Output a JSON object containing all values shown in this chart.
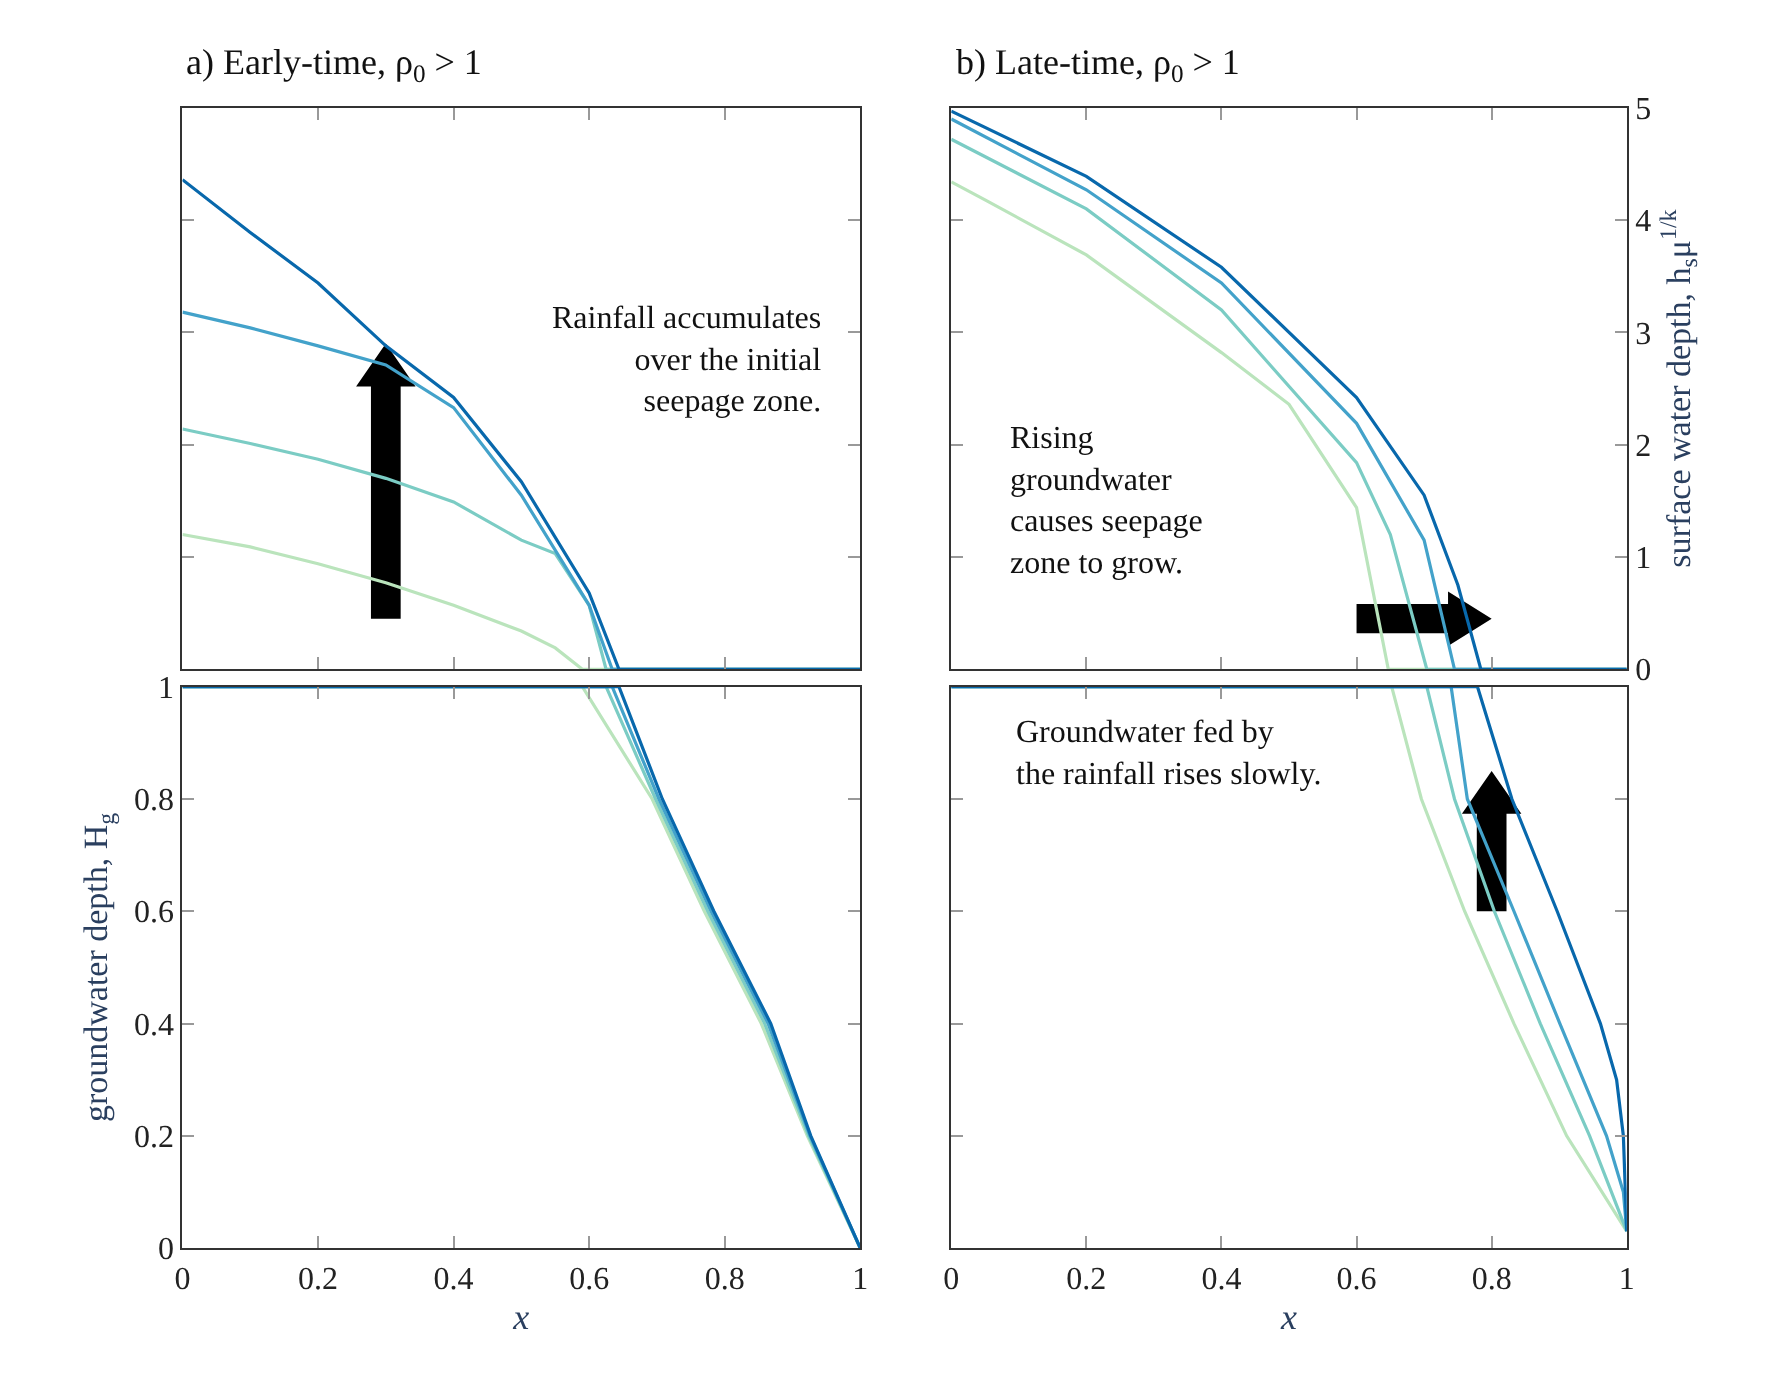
{
  "chart_data": [
    {
      "type": "line",
      "title": "a) Early-time, ρ$_{0}$ > 1",
      "xlim": [
        0,
        1
      ],
      "xticks": [
        {
          "value": 0,
          "label": null
        },
        {
          "value": 0.2,
          "label": null
        },
        {
          "value": 0.4,
          "label": null
        },
        {
          "value": 0.6,
          "label": null
        },
        {
          "value": 0.8,
          "label": null
        },
        {
          "value": 1,
          "label": null
        }
      ],
      "ylim": [
        0,
        5
      ],
      "yticks": [
        {
          "value": 0,
          "label": null
        },
        {
          "value": 1,
          "label": null
        },
        {
          "value": 2,
          "label": null
        },
        {
          "value": 3,
          "label": null
        },
        {
          "value": 4,
          "label": null
        },
        {
          "value": 5,
          "label": null
        }
      ],
      "tick_labels": false,
      "grid": false,
      "annotations": [
        "Rainfall accumulates\nover the initial\nseepage zone."
      ],
      "series": [
        {
          "color": "#bae4bc",
          "x": [
            0,
            0.1,
            0.2,
            0.3,
            0.4,
            0.5,
            0.55,
            0.59,
            1
          ],
          "values": [
            1.2,
            1.09,
            0.94,
            0.77,
            0.57,
            0.34,
            0.19,
            0,
            0
          ]
        },
        {
          "color": "#7bccc4",
          "x": [
            0,
            0.1,
            0.2,
            0.3,
            0.4,
            0.5,
            0.55,
            0.6,
            0.625,
            1
          ],
          "values": [
            2.14,
            2.01,
            1.87,
            1.7,
            1.49,
            1.15,
            1.03,
            0.57,
            0,
            0
          ]
        },
        {
          "color": "#43a2ca",
          "x": [
            0,
            0.1,
            0.2,
            0.3,
            0.4,
            0.5,
            0.6,
            0.634,
            1
          ],
          "values": [
            3.18,
            3.04,
            2.88,
            2.71,
            2.33,
            1.55,
            0.57,
            0,
            0
          ]
        },
        {
          "color": "#0868ac",
          "x": [
            0,
            0.1,
            0.2,
            0.3,
            0.4,
            0.5,
            0.6,
            0.644,
            1
          ],
          "values": [
            4.36,
            3.89,
            3.44,
            2.88,
            2.42,
            1.67,
            0.68,
            0,
            0
          ]
        }
      ]
    },
    {
      "type": "line",
      "title": "b) Late-time, ρ$_{0}$ > 1",
      "ylabel": "surface water depth, h$_{s}$μ$^{1/k}$",
      "xlim": [
        0,
        1
      ],
      "xticks": [
        {
          "value": 0,
          "label": null
        },
        {
          "value": 0.2,
          "label": null
        },
        {
          "value": 0.4,
          "label": null
        },
        {
          "value": 0.6,
          "label": null
        },
        {
          "value": 0.8,
          "label": null
        },
        {
          "value": 1,
          "label": null
        }
      ],
      "ylim": [
        0,
        5
      ],
      "yticks": [
        0,
        1,
        2,
        3,
        4,
        5
      ],
      "tick_labels": "y",
      "grid": false,
      "annotations": [
        "Rising\ngroundwater\ncauses seepage\nzone to grow."
      ],
      "series": [
        {
          "color": "#bae4bc",
          "x": [
            0,
            0.05,
            0.2,
            0.4,
            0.5,
            0.6,
            0.647,
            1
          ],
          "values": [
            4.34,
            4.18,
            3.69,
            2.82,
            2.36,
            1.44,
            0,
            0
          ]
        },
        {
          "color": "#7bccc4",
          "x": [
            0,
            0.2,
            0.4,
            0.6,
            0.65,
            0.704,
            1
          ],
          "values": [
            4.72,
            4.1,
            3.2,
            1.84,
            1.2,
            0,
            0
          ]
        },
        {
          "color": "#43a2ca",
          "x": [
            0,
            0.2,
            0.4,
            0.6,
            0.7,
            0.745,
            1
          ],
          "values": [
            4.9,
            4.27,
            3.44,
            2.19,
            1.15,
            0,
            0
          ]
        },
        {
          "color": "#0868ac",
          "x": [
            0,
            0.2,
            0.4,
            0.6,
            0.7,
            0.75,
            0.784,
            1
          ],
          "values": [
            4.97,
            4.39,
            3.58,
            2.42,
            1.55,
            0.75,
            0,
            0
          ]
        }
      ]
    },
    {
      "type": "line",
      "xlabel": "x",
      "ylabel": "groundwater depth, H$_{g}$",
      "xlim": [
        0,
        1
      ],
      "xticks": [
        0,
        0.2,
        0.4,
        0.6,
        0.8,
        1
      ],
      "ylim": [
        0,
        1
      ],
      "yticks": [
        0,
        0.2,
        0.4,
        0.6,
        0.8,
        1
      ],
      "grid": false,
      "series": [
        {
          "color": "#bae4bc",
          "x": [
            0,
            0.59,
            0.693,
            0.77,
            0.854,
            0.922,
            1
          ],
          "values": [
            1,
            1,
            0.8,
            0.6,
            0.4,
            0.2,
            0
          ]
        },
        {
          "color": "#7bccc4",
          "x": [
            0,
            0.625,
            0.698,
            0.775,
            0.859,
            0.924,
            1
          ],
          "values": [
            1,
            1,
            0.8,
            0.6,
            0.4,
            0.2,
            0
          ]
        },
        {
          "color": "#43a2ca",
          "x": [
            0,
            0.634,
            0.703,
            0.78,
            0.864,
            0.926,
            1
          ],
          "values": [
            1,
            1,
            0.8,
            0.6,
            0.4,
            0.2,
            0
          ]
        },
        {
          "color": "#0868ac",
          "x": [
            0,
            0.644,
            0.708,
            0.784,
            0.868,
            0.927,
            1
          ],
          "values": [
            1,
            1,
            0.8,
            0.6,
            0.4,
            0.2,
            0
          ]
        }
      ]
    },
    {
      "type": "line",
      "xlabel": "x",
      "xlim": [
        0,
        1
      ],
      "xticks": [
        0,
        0.2,
        0.4,
        0.6,
        0.8,
        1
      ],
      "ylim": [
        0,
        1
      ],
      "yticks": [
        0,
        0.2,
        0.4,
        0.6,
        0.8,
        1
      ],
      "tick_labels": "x",
      "grid": false,
      "annotations": [
        "Groundwater fed by\nthe rainfall rises slowly."
      ],
      "series": [
        {
          "color": "#bae4bc",
          "x": [
            0,
            0.652,
            0.696,
            0.76,
            0.833,
            0.911,
            1
          ],
          "values": [
            1,
            1,
            0.8,
            0.6,
            0.4,
            0.2,
            0.03
          ]
        },
        {
          "color": "#7bccc4",
          "x": [
            0,
            0.704,
            0.745,
            0.804,
            0.872,
            0.945,
            1
          ],
          "values": [
            1,
            1,
            0.8,
            0.6,
            0.4,
            0.2,
            0.03
          ]
        },
        {
          "color": "#43a2ca",
          "x": [
            0,
            0.74,
            0.764,
            0.833,
            0.901,
            0.97,
            0.995,
            1
          ],
          "values": [
            1,
            1,
            0.8,
            0.6,
            0.4,
            0.2,
            0.1,
            0.03
          ]
        },
        {
          "color": "#0868ac",
          "x": [
            0,
            0.779,
            0.83,
            0.897,
            0.961,
            0.985,
            0.995,
            1
          ],
          "values": [
            1,
            1,
            0.8,
            0.6,
            0.4,
            0.3,
            0.2,
            0.03
          ]
        }
      ]
    }
  ]
}
